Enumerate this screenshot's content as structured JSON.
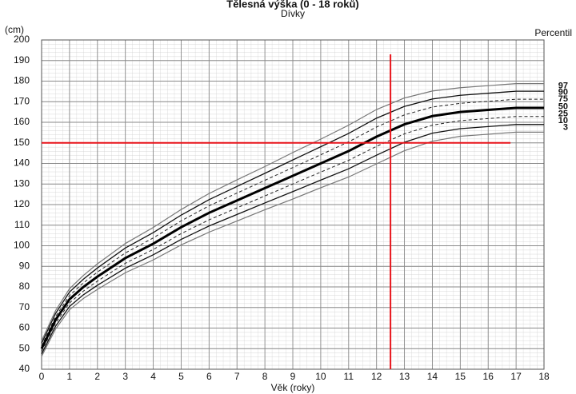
{
  "chart_data": {
    "type": "line",
    "title": "Tělesná výška (0 - 18 roků)",
    "subtitle": "Dívky",
    "y_unit_label": "(cm)",
    "legend_title": "Percentil",
    "x_label": "Věk (roky)",
    "x": [
      0,
      0.25,
      0.5,
      1,
      1.5,
      2,
      3,
      4,
      5,
      6,
      7,
      8,
      9,
      10,
      11,
      12,
      13,
      14,
      15,
      16,
      17,
      18
    ],
    "series": [
      {
        "name": "97",
        "color": "#777777",
        "width": 1.2,
        "dash": false,
        "values": [
          53.8,
          61.1,
          68.5,
          79.1,
          85.6,
          91.2,
          101.1,
          108.9,
          117.6,
          125.4,
          132.0,
          138.5,
          145.3,
          151.8,
          158.6,
          166.2,
          171.8,
          175.2,
          176.8,
          177.8,
          178.8,
          178.8
        ]
      },
      {
        "name": "90",
        "color": "#111111",
        "width": 1.3,
        "dash": false,
        "values": [
          52.6,
          59.8,
          67.1,
          77.5,
          83.8,
          89.2,
          98.9,
          106.4,
          114.9,
          122.4,
          128.8,
          135.2,
          141.7,
          148.1,
          154.6,
          162.0,
          167.7,
          171.3,
          173.1,
          174.1,
          175.1,
          175.1
        ]
      },
      {
        "name": "75",
        "color": "#222222",
        "width": 1,
        "dash": true,
        "values": [
          51.3,
          58.5,
          65.6,
          75.8,
          82.0,
          87.2,
          96.5,
          103.8,
          112.1,
          119.4,
          125.6,
          131.8,
          138.0,
          144.2,
          150.5,
          157.7,
          163.6,
          167.4,
          169.2,
          170.2,
          171.2,
          171.2
        ]
      },
      {
        "name": "50",
        "color": "#000000",
        "width": 3,
        "dash": false,
        "values": [
          50,
          57,
          64,
          74,
          80,
          85,
          94,
          101,
          109,
          116,
          122,
          128,
          134,
          140,
          146,
          153,
          159,
          163,
          165,
          166,
          167,
          167
        ]
      },
      {
        "name": "25",
        "color": "#222222",
        "width": 1,
        "dash": true,
        "values": [
          48.7,
          55.5,
          62.4,
          72.2,
          78.0,
          82.8,
          91.5,
          98.2,
          105.9,
          112.6,
          118.4,
          124.2,
          130.0,
          135.8,
          141.5,
          148.3,
          154.4,
          158.6,
          160.8,
          161.8,
          162.8,
          162.8
        ]
      },
      {
        "name": "10",
        "color": "#111111",
        "width": 1.3,
        "dash": false,
        "values": [
          47.4,
          54.2,
          60.9,
          70.5,
          76.2,
          80.8,
          89.1,
          95.6,
          103.1,
          109.6,
          115.2,
          120.8,
          126.3,
          131.9,
          137.4,
          144.0,
          150.3,
          154.7,
          156.9,
          157.9,
          158.9,
          158.9
        ]
      },
      {
        "name": "3",
        "color": "#777777",
        "width": 1.2,
        "dash": false,
        "values": [
          46.2,
          52.9,
          59.5,
          68.9,
          74.4,
          78.8,
          86.9,
          93.1,
          100.4,
          106.6,
          112.0,
          117.5,
          122.7,
          128.2,
          133.4,
          139.8,
          146.2,
          150.8,
          153.2,
          154.2,
          155.2,
          155.2
        ]
      }
    ],
    "xlim": [
      0,
      18
    ],
    "ylim": [
      40,
      200
    ],
    "xticks": [
      0,
      1,
      2,
      3,
      4,
      5,
      6,
      7,
      8,
      9,
      10,
      11,
      12,
      13,
      14,
      15,
      16,
      17,
      18
    ],
    "yticks": [
      40,
      50,
      60,
      70,
      80,
      90,
      100,
      110,
      120,
      130,
      140,
      150,
      160,
      170,
      180,
      190,
      200
    ],
    "grid": true,
    "reference_lines": {
      "color": "#e8141b",
      "vertical": {
        "x": 12.5,
        "y_range": [
          40,
          193
        ]
      },
      "horizontal": {
        "y": 150,
        "x_range": [
          0,
          16.8
        ]
      }
    }
  }
}
